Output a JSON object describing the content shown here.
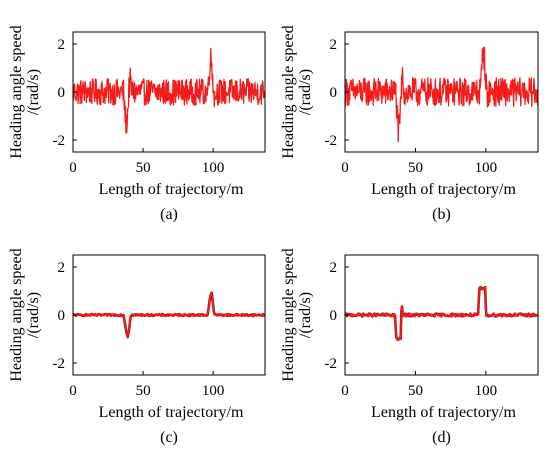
{
  "figure": {
    "colors": {
      "signal": "#ff1a1a",
      "signal_dark": "#b01818",
      "axis": "#000000"
    }
  },
  "chart_data": [
    {
      "type": "line",
      "panel_label": "(a)",
      "xlabel": "Length of trajectory/m",
      "ylabel_line1": "Heading angle speed",
      "ylabel_line2": "/(rad/s)",
      "xlim": [
        0,
        137
      ],
      "ylim": [
        -2.5,
        2.5
      ],
      "xticks": [
        0,
        50,
        100
      ],
      "xtick_labels": [
        "0",
        "50",
        "100"
      ],
      "yticks": [
        2,
        0,
        -2
      ],
      "ytick_labels": [
        "2",
        "0",
        "-2"
      ],
      "series": [
        {
          "style": "noisy",
          "noise_amplitude": 0.55,
          "x": [
            0,
            36,
            37,
            38,
            39,
            40,
            41,
            42,
            96,
            97,
            98,
            99,
            100,
            101,
            102,
            137
          ],
          "y": [
            0,
            0,
            -0.8,
            -1.4,
            -0.9,
            0.2,
            0.5,
            0,
            0,
            0.6,
            1.5,
            1.1,
            0.4,
            -0.3,
            0,
            0
          ]
        }
      ]
    },
    {
      "type": "line",
      "panel_label": "(b)",
      "xlabel": "Length of trajectory/m",
      "ylabel_line1": "Heading angle speed",
      "ylabel_line2": "/(rad/s)",
      "xlim": [
        0,
        137
      ],
      "ylim": [
        -2.5,
        2.5
      ],
      "xticks": [
        0,
        50,
        100
      ],
      "xtick_labels": [
        "0",
        "50",
        "100"
      ],
      "yticks": [
        2,
        0,
        -2
      ],
      "ytick_labels": [
        "2",
        "0",
        "-2"
      ],
      "series": [
        {
          "style": "noisy",
          "noise_amplitude": 0.6,
          "x": [
            0,
            36,
            37,
            38,
            39,
            40,
            41,
            42,
            96,
            97,
            98,
            99,
            100,
            101,
            102,
            137
          ],
          "y": [
            0,
            0,
            -0.9,
            -1.8,
            -1.2,
            0.2,
            0.6,
            0,
            0,
            0.8,
            1.9,
            1.3,
            0.5,
            -0.4,
            0,
            0
          ]
        }
      ]
    },
    {
      "type": "line",
      "panel_label": "(c)",
      "xlabel": "Length of trajectory/m",
      "ylabel_line1": "Heading angle speed",
      "ylabel_line2": "/(rad/s)",
      "xlim": [
        0,
        137
      ],
      "ylim": [
        -2.5,
        2.5
      ],
      "xticks": [
        0,
        50,
        100
      ],
      "xtick_labels": [
        "0",
        "50",
        "100"
      ],
      "yticks": [
        2,
        0,
        -2
      ],
      "ytick_labels": [
        "2",
        "0",
        "-2"
      ],
      "series": [
        {
          "style": "smooth",
          "noise_amplitude": 0.04,
          "x": [
            0,
            36,
            37,
            38,
            39,
            40,
            41,
            42,
            96,
            97,
            98,
            99,
            100,
            101,
            137
          ],
          "y": [
            0,
            0,
            -0.3,
            -0.7,
            -0.9,
            -0.6,
            -0.1,
            0,
            0,
            0.4,
            0.8,
            0.9,
            0.4,
            0,
            0
          ]
        }
      ]
    },
    {
      "type": "line",
      "panel_label": "(d)",
      "xlabel": "Length of trajectory/m",
      "ylabel_line1": "Heading angle speed",
      "ylabel_line2": "/(rad/s)",
      "xlim": [
        0,
        137
      ],
      "ylim": [
        -2.5,
        2.5
      ],
      "xticks": [
        0,
        50,
        100
      ],
      "xtick_labels": [
        "0",
        "50",
        "100"
      ],
      "yticks": [
        2,
        0,
        -2
      ],
      "ytick_labels": [
        "2",
        "0",
        "-2"
      ],
      "series": [
        {
          "style": "smooth",
          "noise_amplitude": 0.06,
          "x": [
            0,
            35.5,
            36,
            36.5,
            39.5,
            40,
            40.5,
            41,
            94.5,
            95,
            95.5,
            99.5,
            100,
            100.5,
            137
          ],
          "y": [
            0,
            0,
            -0.6,
            -1.0,
            -1.0,
            0.2,
            0.3,
            0,
            0,
            0.7,
            1.1,
            1.1,
            0.2,
            0,
            0
          ]
        }
      ]
    }
  ]
}
